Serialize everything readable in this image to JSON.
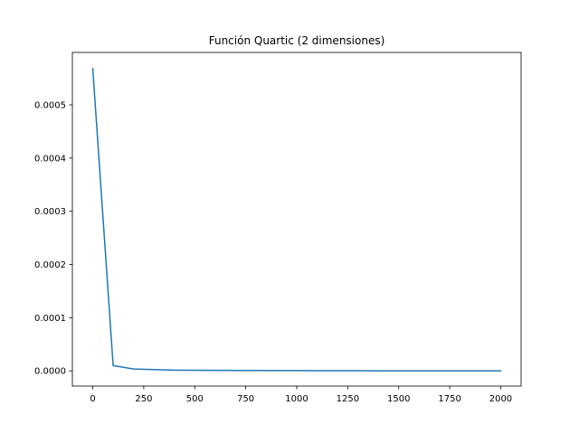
{
  "chart_data": {
    "type": "line",
    "title": "Función Quartic (2 dimensiones)",
    "xlabel": "",
    "ylabel": "",
    "xlim": [
      -100,
      2100
    ],
    "ylim": [
      -2.85e-05,
      0.0005985
    ],
    "xticks": [
      0,
      250,
      500,
      750,
      1000,
      1250,
      1500,
      1750,
      2000
    ],
    "xtick_labels": [
      "0",
      "250",
      "500",
      "750",
      "1000",
      "1250",
      "1500",
      "1750",
      "2000"
    ],
    "yticks": [
      0.0,
      0.0001,
      0.0002,
      0.0003,
      0.0004,
      0.0005
    ],
    "ytick_labels": [
      "0.0000",
      "0.0001",
      "0.0002",
      "0.0003",
      "0.0004",
      "0.0005"
    ],
    "grid": false,
    "series": [
      {
        "color": "#1f77b4",
        "x": [
          0,
          100,
          200,
          300,
          400,
          500,
          600,
          700,
          800,
          900,
          1000,
          1100,
          1200,
          1300,
          1400,
          1500,
          1600,
          1700,
          1800,
          1900,
          2000
        ],
        "y": [
          0.000568,
          1e-05,
          3.5e-06,
          2.5e-06,
          1.5e-06,
          1.2e-06,
          1e-06,
          9e-07,
          8e-07,
          7e-07,
          6e-07,
          3e-07,
          3e-07,
          3e-07,
          2e-07,
          2e-07,
          2e-07,
          1e-07,
          1e-07,
          1e-07,
          1e-07
        ]
      }
    ]
  }
}
